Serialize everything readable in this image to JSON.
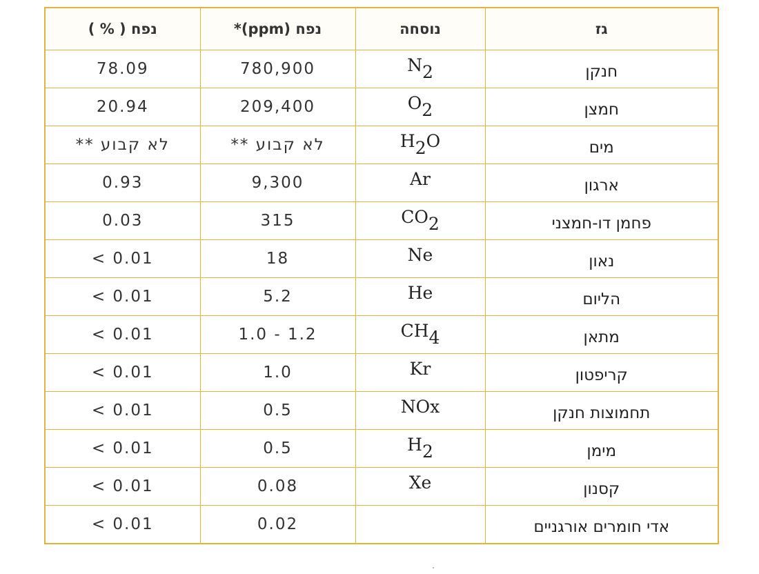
{
  "headers": {
    "gas": "גז",
    "formula": "נוסחה",
    "ppm": "*(ppm) נפח",
    "percent": "נפח ( % )"
  },
  "rows": [
    {
      "gas": "חנקן",
      "formula": {
        "base": "N",
        "sub": "2",
        "rest": ""
      },
      "ppm": "780,900",
      "percent": "78.09"
    },
    {
      "gas": "חמצן",
      "formula": {
        "base": "O",
        "sub": "2",
        "rest": ""
      },
      "ppm": "209,400",
      "percent": "20.94"
    },
    {
      "gas": "מים",
      "formula": {
        "base": "H",
        "sub": "2",
        "rest": "O"
      },
      "ppm": "לא קבוע **",
      "percent": "לא קבוע **"
    },
    {
      "gas": "ארגון",
      "formula": {
        "base": "Ar",
        "sub": "",
        "rest": ""
      },
      "ppm": "9,300",
      "percent": "0.93"
    },
    {
      "gas": "פחמן דו-חמצני",
      "formula": {
        "base": "CO",
        "sub": "2",
        "rest": ""
      },
      "ppm": "315",
      "percent": "0.03"
    },
    {
      "gas": "נאון",
      "formula": {
        "base": "Ne",
        "sub": "",
        "rest": ""
      },
      "ppm": "18",
      "percent": "< 0.01"
    },
    {
      "gas": "הליום",
      "formula": {
        "base": "He",
        "sub": "",
        "rest": ""
      },
      "ppm": "5.2",
      "percent": "< 0.01"
    },
    {
      "gas": "מתאן",
      "formula": {
        "base": "CH",
        "sub": "4",
        "rest": ""
      },
      "ppm": "1.0 - 1.2",
      "percent": "< 0.01"
    },
    {
      "gas": "קריפטון",
      "formula": {
        "base": "Kr",
        "sub": "",
        "rest": ""
      },
      "ppm": "1.0",
      "percent": "< 0.01"
    },
    {
      "gas": "תחמוצות חנקן",
      "formula": {
        "base": "NOx",
        "sub": "",
        "rest": ""
      },
      "ppm": "0.5",
      "percent": "< 0.01"
    },
    {
      "gas": "מימן",
      "formula": {
        "base": "H",
        "sub": "2",
        "rest": ""
      },
      "ppm": "0.5",
      "percent": "< 0.01"
    },
    {
      "gas": "קסנון",
      "formula": {
        "base": "Xe",
        "sub": "",
        "rest": ""
      },
      "ppm": "0.08",
      "percent": "< 0.01"
    },
    {
      "gas": "אדי חומרים אורגניים",
      "formula": {
        "base": "",
        "sub": "",
        "rest": ""
      },
      "ppm": "0.02",
      "percent": "< 0.01"
    }
  ],
  "colors": {
    "grid": "#e2b23a",
    "text": "#2b2b2b"
  }
}
